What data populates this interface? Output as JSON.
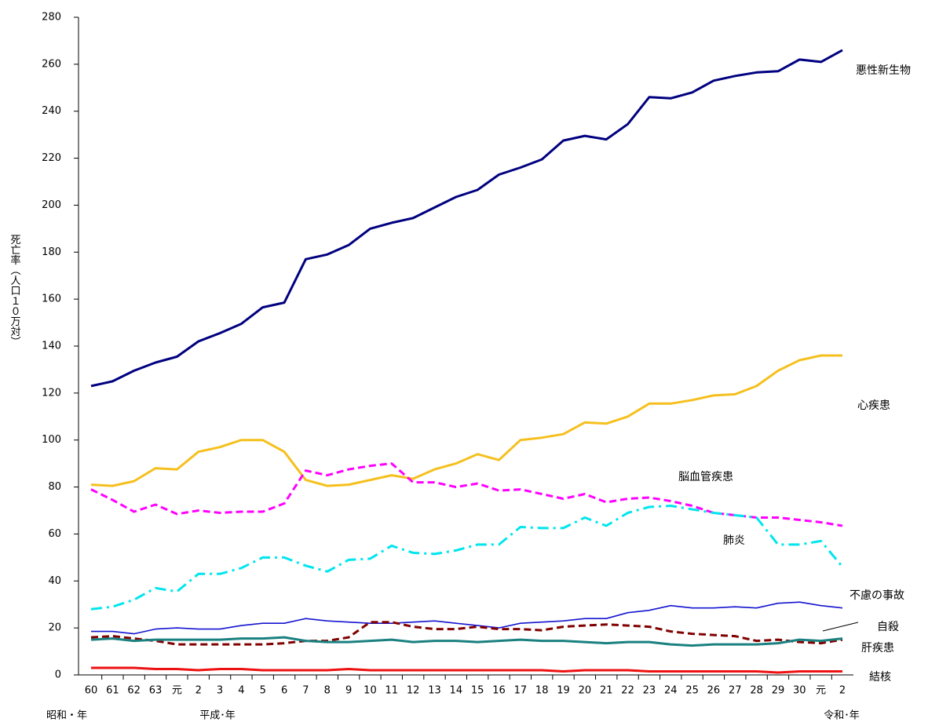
{
  "chart_data": {
    "type": "line",
    "ylabel": "死亡率（人口１０万対）",
    "eras": [
      "昭和・年",
      "平成･年",
      "令和･年"
    ],
    "categories": [
      "60",
      "61",
      "62",
      "63",
      "元",
      "2",
      "3",
      "4",
      "5",
      "6",
      "7",
      "8",
      "9",
      "10",
      "11",
      "12",
      "13",
      "14",
      "15",
      "16",
      "17",
      "18",
      "19",
      "20",
      "21",
      "22",
      "23",
      "24",
      "25",
      "26",
      "27",
      "28",
      "29",
      "30",
      "元",
      "2"
    ],
    "ylim": [
      0,
      280
    ],
    "yticks": [
      0,
      20,
      40,
      60,
      80,
      100,
      120,
      140,
      160,
      180,
      200,
      220,
      240,
      260,
      280
    ],
    "series": [
      {
        "name": "悪性新生物",
        "color": "#000080",
        "style": "solid",
        "values": [
          123,
          125,
          129.5,
          133,
          135.5,
          142,
          145.5,
          149.5,
          156.5,
          158.5,
          177,
          179,
          183,
          190,
          192.5,
          194.5,
          199,
          203.5,
          206.5,
          213,
          216,
          219.5,
          227.5,
          229.5,
          228,
          234.5,
          246,
          245.5,
          248,
          253,
          255,
          256.5,
          257,
          262,
          261,
          266
        ]
      },
      {
        "name": "心疾患",
        "color": "#f5c01e",
        "style": "solid",
        "values": [
          81,
          80.5,
          82.5,
          88,
          87.5,
          95,
          97,
          100,
          100,
          95,
          83,
          80.5,
          81,
          83,
          85,
          83.5,
          87.5,
          90,
          94,
          91.5,
          100,
          101,
          102.5,
          107.5,
          107,
          110,
          115.5,
          115.5,
          117,
          119,
          119.5,
          123,
          129.5,
          134,
          136,
          136
        ]
      },
      {
        "name": "脳血管疾患",
        "color": "#ff00ff",
        "style": "dashed",
        "values": [
          79,
          74.5,
          69.5,
          72.5,
          68.5,
          70,
          69,
          69.5,
          69.5,
          73,
          87,
          85,
          87.5,
          89,
          90,
          82,
          82,
          80,
          81.5,
          78.5,
          79,
          77,
          75,
          77,
          73.5,
          75,
          75.5,
          74,
          72,
          69,
          68,
          67,
          67,
          66,
          65,
          63.5
        ]
      },
      {
        "name": "肺炎",
        "color": "#00e5ee",
        "style": "dashdot",
        "values": [
          28,
          29,
          32,
          37,
          35.5,
          43,
          43,
          45.5,
          50,
          50,
          46.5,
          44,
          49,
          49.5,
          55,
          52,
          51.5,
          53,
          55.5,
          55.5,
          63,
          62.5,
          62.5,
          67,
          63.5,
          69,
          71.5,
          72,
          70.5,
          69,
          68,
          67,
          55.5,
          55.5,
          57,
          46
        ]
      },
      {
        "name": "不慮の事故",
        "color": "#1515d0",
        "style": "thin",
        "values": [
          18.5,
          18.5,
          17.5,
          19.5,
          20,
          19.5,
          19.5,
          21,
          22,
          22,
          24,
          23,
          22.5,
          22,
          22,
          22.5,
          23,
          22,
          21,
          20,
          22,
          22.5,
          23,
          24,
          24,
          26.5,
          27.5,
          29.5,
          28.5,
          28.5,
          29,
          28.5,
          30.5,
          31,
          29.5,
          28.5
        ]
      },
      {
        "name": "自殺",
        "color": "#800000",
        "style": "dashed",
        "values": [
          16,
          16.5,
          15.5,
          14.5,
          13,
          13,
          13,
          13,
          13,
          13.5,
          14.5,
          14.5,
          16,
          22.5,
          22.5,
          20.5,
          19.5,
          19.5,
          20.5,
          19.5,
          19.5,
          19,
          20.5,
          21,
          21.5,
          21,
          20.5,
          18.5,
          17.5,
          17,
          16.5,
          14.5,
          15,
          14,
          13.5,
          15
        ]
      },
      {
        "name": "肝疾患",
        "color": "#1a8080",
        "style": "solid",
        "values": [
          15,
          15.5,
          14.5,
          15,
          15,
          15,
          15,
          15.5,
          15.5,
          16,
          14.5,
          14,
          14,
          14.5,
          15,
          14,
          14.5,
          14.5,
          14,
          14.5,
          15,
          14.5,
          14.5,
          14,
          13.5,
          14,
          14,
          13,
          12.5,
          13,
          13,
          13,
          13.5,
          15,
          14.5,
          15.5
        ]
      },
      {
        "name": "結核",
        "color": "#ee1111",
        "style": "solid",
        "values": [
          3,
          3,
          3,
          2.5,
          2.5,
          2,
          2.5,
          2.5,
          2,
          2,
          2,
          2,
          2.5,
          2,
          2,
          2,
          2,
          2,
          2,
          2,
          2,
          2,
          1.5,
          2,
          2,
          2,
          1.5,
          1.5,
          1.5,
          1.5,
          1.5,
          1.5,
          1,
          1.5,
          1.5,
          1.5
        ]
      }
    ]
  }
}
